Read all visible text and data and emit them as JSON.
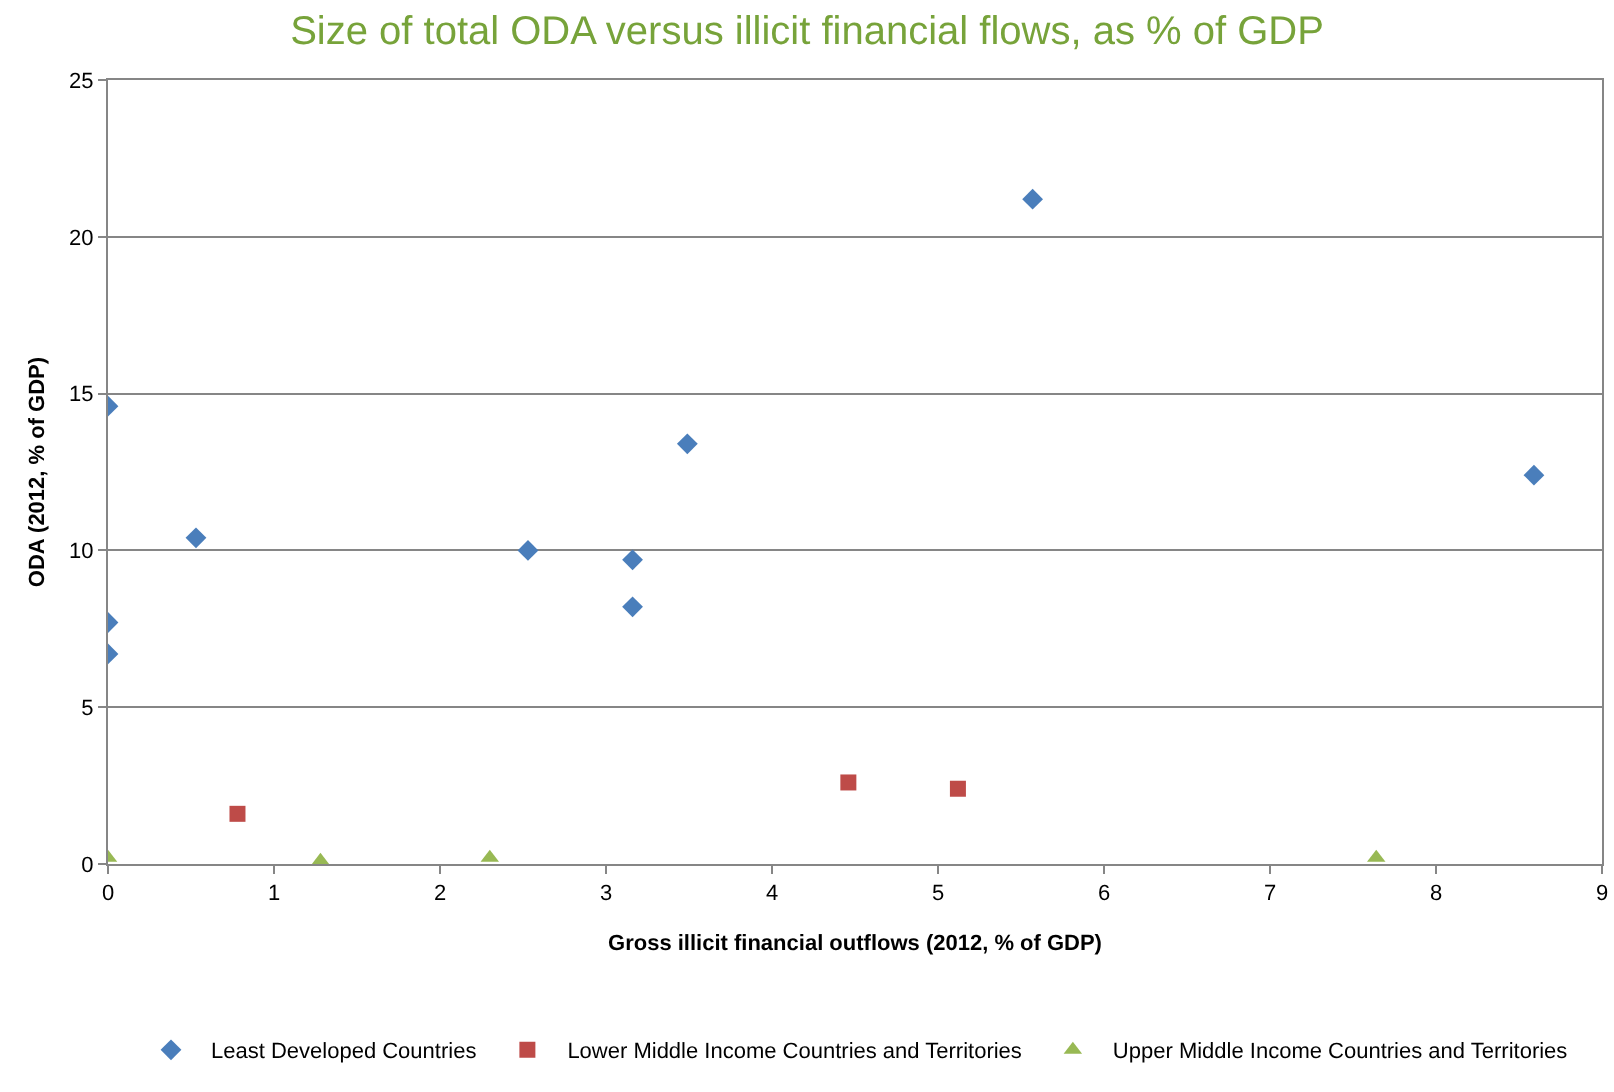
{
  "chart_data": {
    "type": "scatter",
    "title": "Size of total ODA versus illicit financial flows, as % of GDP",
    "xlabel": "Gross illicit financial outflows (2012, % of GDP)",
    "ylabel": "ODA (2012, % of GDP)",
    "series": [
      {
        "name": "Least Developed Countries",
        "color": "#4a7ebb",
        "marker": "diamond",
        "x": [
          0,
          0,
          0,
          0.53,
          2.53,
          3.16,
          3.16,
          3.49,
          5.57,
          8.59
        ],
        "values": [
          14.6,
          7.7,
          6.7,
          10.4,
          10.0,
          9.7,
          8.2,
          13.4,
          21.2,
          12.4
        ]
      },
      {
        "name": "Lower Middle Income Countries and Territories",
        "color": "#be4b48",
        "marker": "square",
        "x": [
          0.78,
          4.46,
          5.12
        ],
        "values": [
          1.6,
          2.6,
          2.4
        ]
      },
      {
        "name": "Upper Middle Income Countries and Territories",
        "color": "#98b954",
        "marker": "triangle",
        "x": [
          0,
          1.28,
          2.3,
          7.64
        ],
        "values": [
          0.2,
          0.1,
          0.2,
          0.2
        ]
      }
    ],
    "xlim": [
      0,
      9
    ],
    "xticks": [
      0,
      1,
      2,
      3,
      4,
      5,
      6,
      7,
      8,
      9
    ],
    "ylim": [
      0,
      25
    ],
    "yticks": [
      0,
      5,
      10,
      15,
      20,
      25
    ],
    "grid": "y",
    "legend": "bottom"
  }
}
